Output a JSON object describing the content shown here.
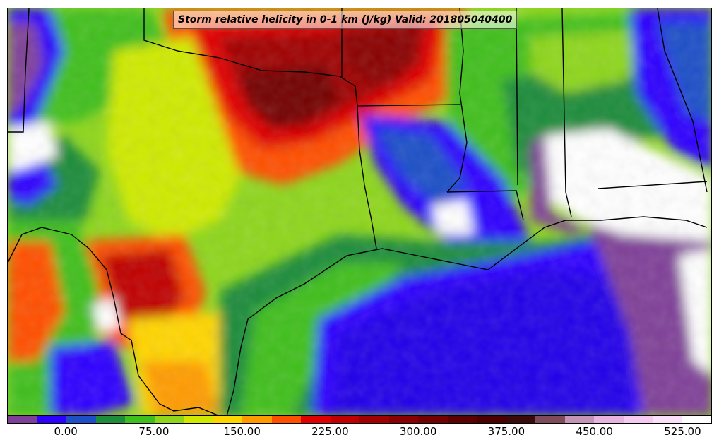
{
  "title": "Storm relative helicity in 0-1 km (J/kg) Valid: 201805040400",
  "colorbar": {
    "levels": [
      -50,
      -25,
      0,
      25,
      50,
      75,
      100,
      125,
      150,
      175,
      200,
      225,
      250,
      275,
      300,
      325,
      350,
      375,
      400,
      425,
      450,
      475,
      500,
      525,
      550
    ],
    "colors": [
      "#7f3f98",
      "#2e00ff",
      "#1f4fc7",
      "#1e8c3a",
      "#3fbf1f",
      "#8ed61c",
      "#cfea00",
      "#ffd500",
      "#ff9b00",
      "#ff5000",
      "#e00000",
      "#c00000",
      "#a00000",
      "#8a0000",
      "#730000",
      "#5a0000",
      "#4a0000",
      "#3a0a0a",
      "#7f4a5a",
      "#c593b6",
      "#e9b3e0",
      "#f6c9f1",
      "#fbe0fa",
      "#ffffff"
    ],
    "tick_labels": [
      {
        "label": "0.00",
        "value": 0
      },
      {
        "label": "75.00",
        "value": 75
      },
      {
        "label": "150.00",
        "value": 150
      },
      {
        "label": "225.00",
        "value": 225
      },
      {
        "label": "300.00",
        "value": 300
      },
      {
        "label": "375.00",
        "value": 375
      },
      {
        "label": "450.00",
        "value": 450
      },
      {
        "label": "525.00",
        "value": 525
      }
    ]
  }
}
